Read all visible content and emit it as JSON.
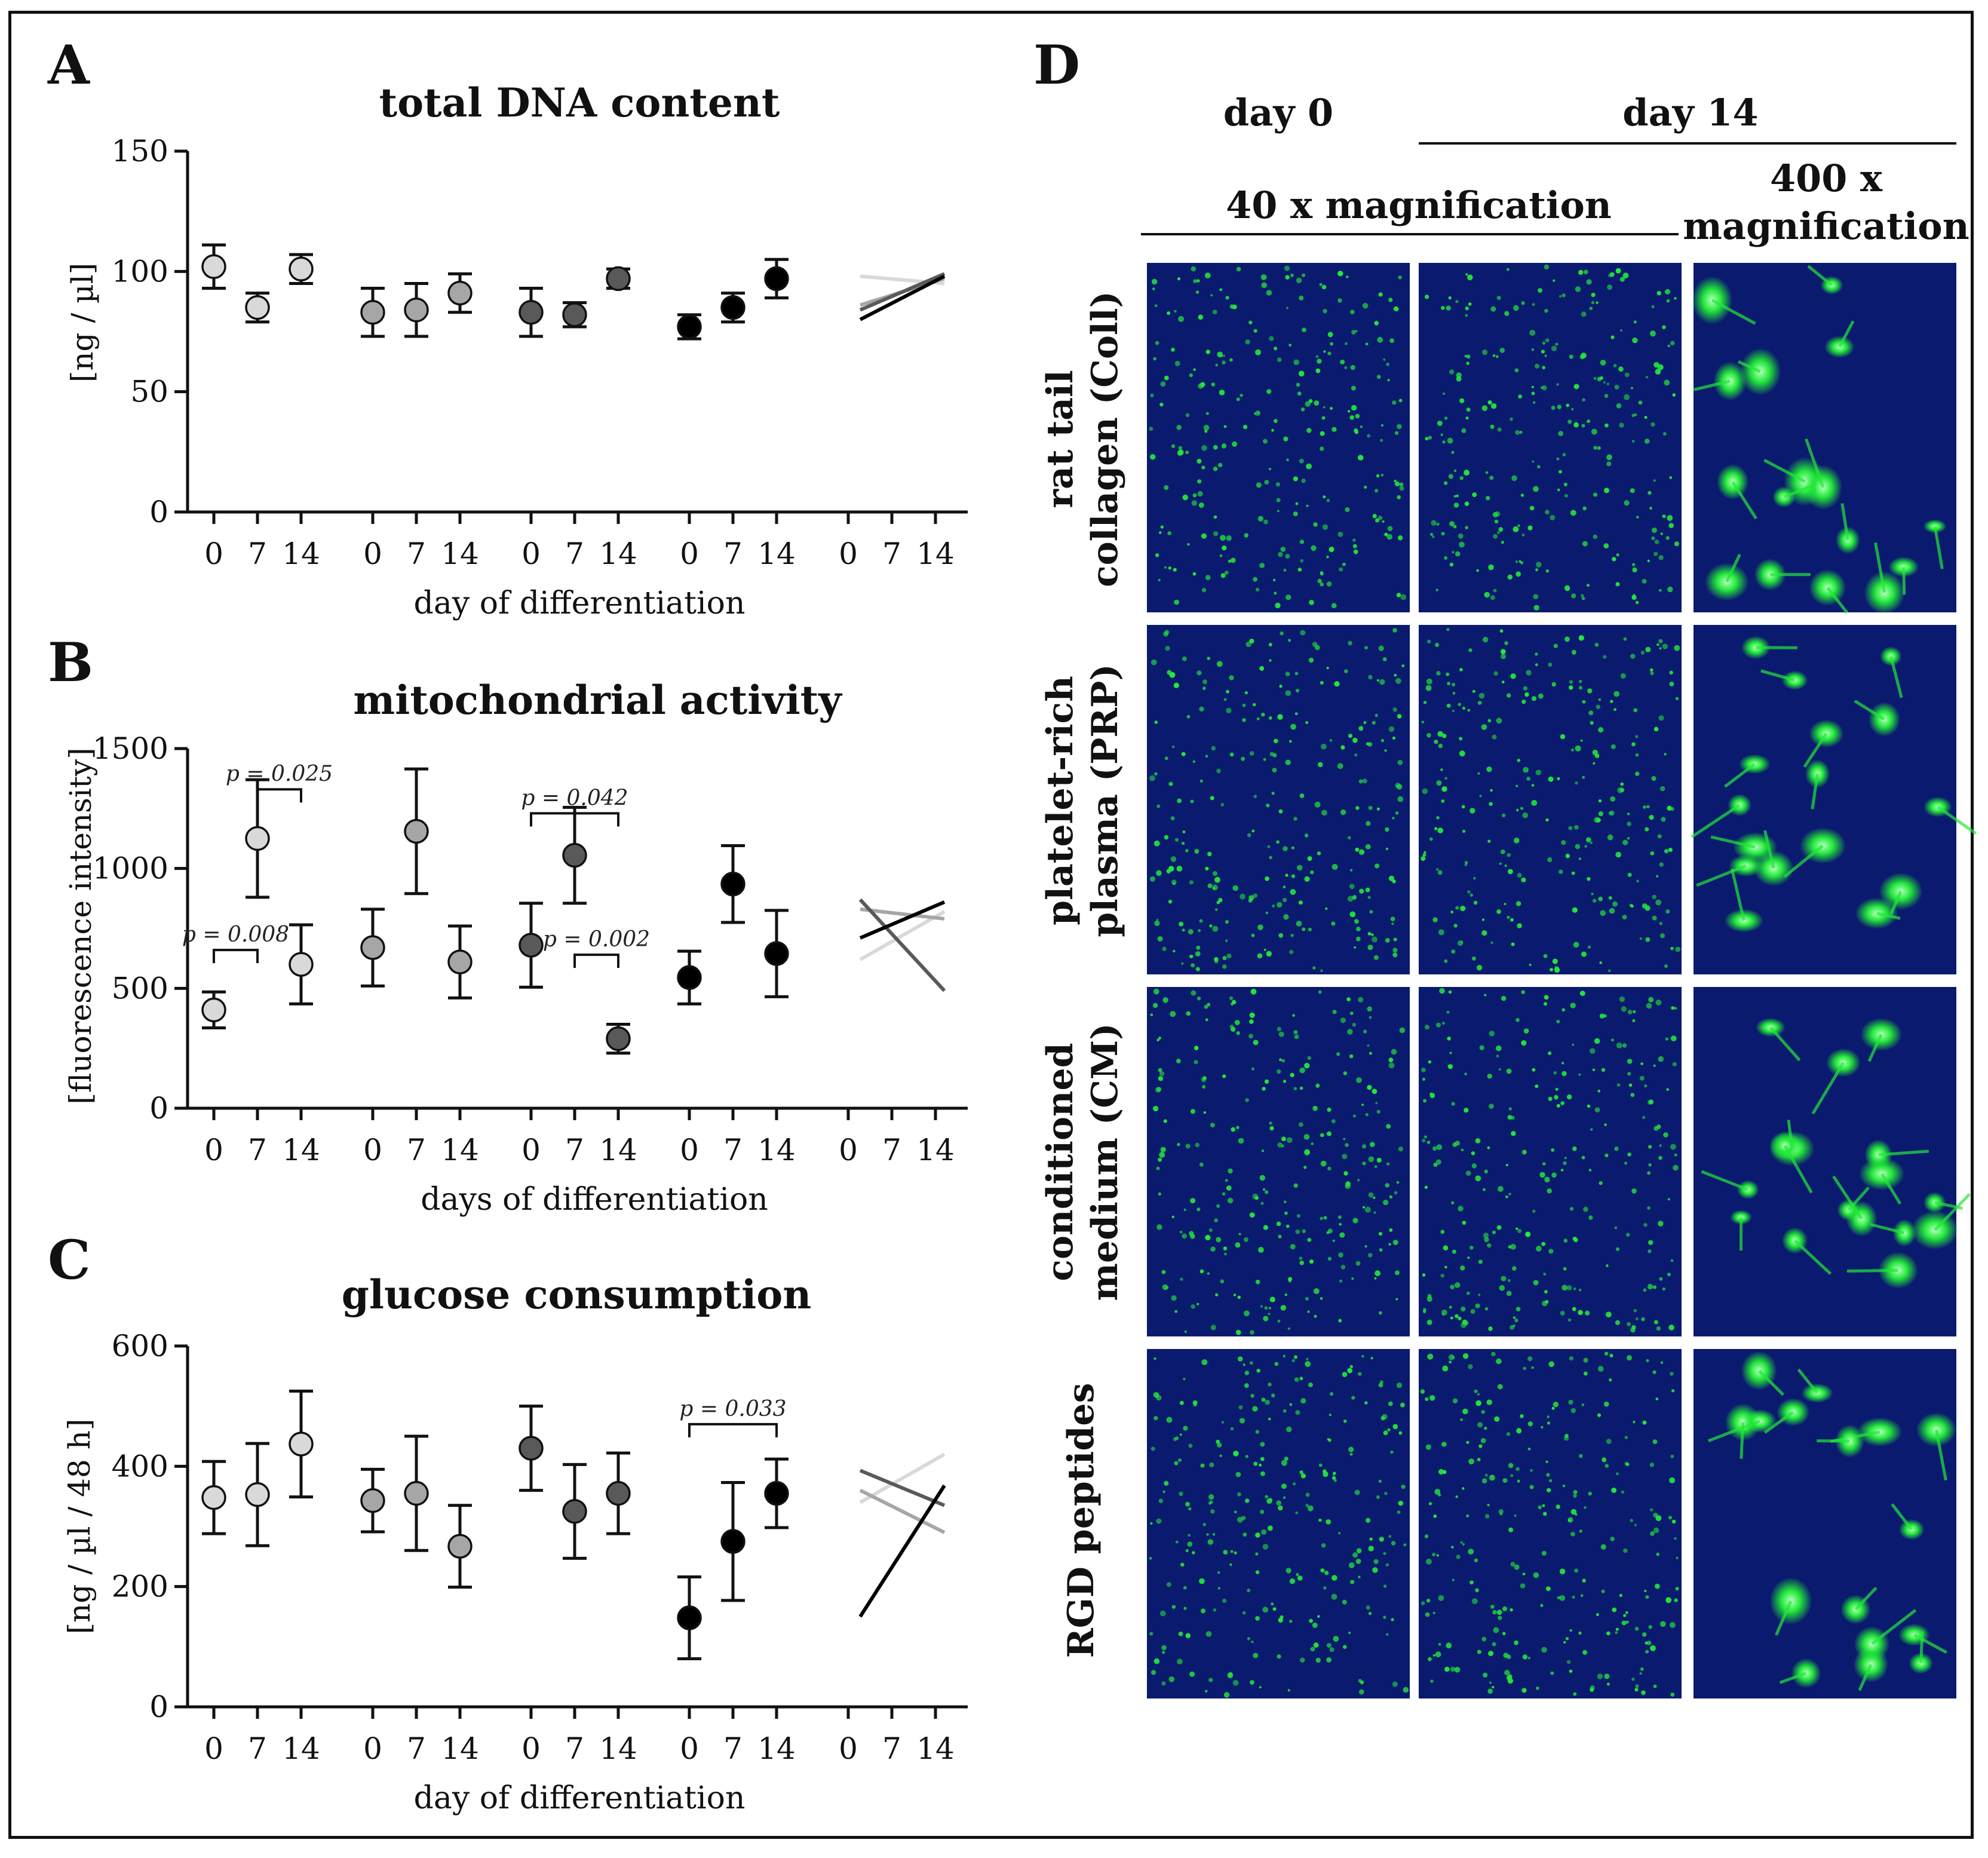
{
  "panels": [
    {
      "letter": "A",
      "title": "total DNA content",
      "ylabel": "[ng / µl]",
      "xlabel": "day of differentiation"
    },
    {
      "letter": "B",
      "title": "mitochondrial activity",
      "ylabel": "[fluorescence intensity]",
      "xlabel": "days of differentiation"
    },
    {
      "letter": "C",
      "title": "glucose consumption",
      "ylabel": "[ng / µl / 48 h]",
      "xlabel": "day of differentiation"
    }
  ],
  "panel_d": {
    "letter": "D",
    "day0_label": "day 0",
    "day14_label": "day 14",
    "mag40_label": "40 x magnification",
    "mag400_label_line1": "400 x",
    "mag400_label_line2": "magnification",
    "rows": [
      {
        "line1": "rat tail",
        "line2": "collagen (Coll)"
      },
      {
        "line1": "platelet-rich",
        "line2": "plasma (PRP)"
      },
      {
        "line1": "conditioned",
        "line2": "medium (CM)"
      },
      {
        "line1": "RGD peptides",
        "line2": ""
      }
    ]
  },
  "colors": {
    "Coll": "#d9d9d9",
    "PRP": "#a6a6a6",
    "CM": "#595959",
    "RGD": "#000000",
    "micro_bg": "#0a1a6e",
    "micro_fg": "#22e83a"
  },
  "chart_data": [
    {
      "type": "scatter",
      "panel": "A",
      "title": "total DNA content",
      "ylabel": "[ng / µl]",
      "xlabel": "day of differentiation",
      "ylim": [
        0,
        150
      ],
      "yticks": [
        0,
        50,
        100,
        150
      ],
      "categories": [
        "0",
        "7",
        "14"
      ],
      "series": [
        {
          "name": "Coll",
          "values": [
            102,
            85,
            101
          ],
          "errors": [
            9,
            6,
            6
          ]
        },
        {
          "name": "PRP",
          "values": [
            83,
            84,
            91
          ],
          "errors": [
            10,
            11,
            8
          ]
        },
        {
          "name": "CM",
          "values": [
            83,
            82,
            97
          ],
          "errors": [
            10,
            5,
            4
          ]
        },
        {
          "name": "RGD",
          "values": [
            77,
            85,
            97
          ],
          "errors": [
            5,
            6,
            8
          ]
        }
      ],
      "trend_lines": [
        {
          "name": "Coll",
          "start": 98,
          "end": 95
        },
        {
          "name": "PRP",
          "start": 86,
          "end": 97
        },
        {
          "name": "CM",
          "start": 84,
          "end": 99
        },
        {
          "name": "RGD",
          "start": 80,
          "end": 98
        }
      ],
      "annotations": []
    },
    {
      "type": "scatter",
      "panel": "B",
      "title": "mitochondrial activity",
      "ylabel": "[fluorescence intensity]",
      "xlabel": "days of differentiation",
      "ylim": [
        0,
        1500
      ],
      "yticks": [
        0,
        500,
        1000,
        1500
      ],
      "categories": [
        "0",
        "7",
        "14"
      ],
      "series": [
        {
          "name": "Coll",
          "values": [
            410,
            1125,
            600
          ],
          "errors": [
            75,
            245,
            165
          ]
        },
        {
          "name": "PRP",
          "values": [
            670,
            1155,
            610
          ],
          "errors": [
            160,
            260,
            150
          ]
        },
        {
          "name": "CM",
          "values": [
            680,
            1055,
            290
          ],
          "errors": [
            175,
            200,
            60
          ]
        },
        {
          "name": "RGD",
          "values": [
            545,
            935,
            645
          ],
          "errors": [
            110,
            160,
            180
          ]
        }
      ],
      "trend_lines": [
        {
          "name": "Coll",
          "start": 620,
          "end": 820
        },
        {
          "name": "PRP",
          "start": 830,
          "end": 790
        },
        {
          "name": "CM",
          "start": 870,
          "end": 490
        },
        {
          "name": "RGD",
          "start": 710,
          "end": 860
        }
      ],
      "annotations": [
        {
          "text": "p = 0.025",
          "group": 0,
          "from": 1,
          "to": 2,
          "y": 1330
        },
        {
          "text": "p = 0.008",
          "group": 0,
          "from": 0,
          "to": 1,
          "y": 660
        },
        {
          "text": "p = 0.042",
          "group": 2,
          "from": 0,
          "to": 2,
          "y": 1230
        },
        {
          "text": "p = 0.002",
          "group": 2,
          "from": 1,
          "to": 2,
          "y": 640
        }
      ]
    },
    {
      "type": "scatter",
      "panel": "C",
      "title": "glucose consumption",
      "ylabel": "[ng / µl / 48 h]",
      "xlabel": "day of differentiation",
      "ylim": [
        0,
        600
      ],
      "yticks": [
        0,
        200,
        400,
        600
      ],
      "categories": [
        "0",
        "7",
        "14"
      ],
      "series": [
        {
          "name": "Coll",
          "values": [
            348,
            353,
            437
          ],
          "errors": [
            60,
            85,
            88
          ]
        },
        {
          "name": "PRP",
          "values": [
            343,
            355,
            267
          ],
          "errors": [
            52,
            95,
            68
          ]
        },
        {
          "name": "CM",
          "values": [
            430,
            325,
            355
          ],
          "errors": [
            70,
            78,
            67
          ]
        },
        {
          "name": "RGD",
          "values": [
            148,
            275,
            355
          ],
          "errors": [
            68,
            98,
            57
          ]
        }
      ],
      "trend_lines": [
        {
          "name": "Coll",
          "start": 340,
          "end": 420
        },
        {
          "name": "PRP",
          "start": 360,
          "end": 290
        },
        {
          "name": "CM",
          "start": 393,
          "end": 335
        },
        {
          "name": "RGD",
          "start": 150,
          "end": 368
        }
      ],
      "annotations": [
        {
          "text": "p = 0.033",
          "group": 3,
          "from": 0,
          "to": 2,
          "y": 470
        }
      ]
    }
  ]
}
